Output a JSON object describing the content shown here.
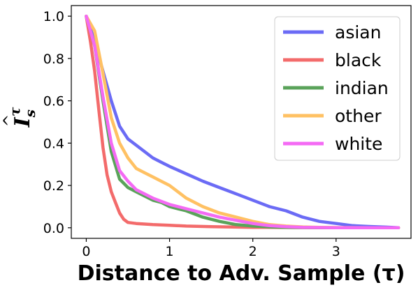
{
  "chart_data": {
    "type": "line",
    "xlabel": "Distance to Adv. Sample (τ)",
    "ylabel": "Î_s^τ",
    "ylabel_display": {
      "base": "I",
      "sub": "s",
      "sup": "τ"
    },
    "xlim": [
      -0.18,
      3.9
    ],
    "ylim": [
      -0.05,
      1.05
    ],
    "x_ticks": [
      0,
      1,
      2,
      3
    ],
    "y_ticks": [
      0.0,
      0.2,
      0.4,
      0.6,
      0.8,
      1.0
    ],
    "y_tick_labels": [
      "0.0",
      "0.2",
      "0.4",
      "0.6",
      "0.8",
      "1.0"
    ],
    "legend_position": "top-right",
    "grid": false,
    "series": [
      {
        "name": "asian",
        "color": "#6b6bf5",
        "x": [
          0,
          0.1,
          0.2,
          0.3,
          0.4,
          0.5,
          0.6,
          0.7,
          0.8,
          0.9,
          1.0,
          1.2,
          1.4,
          1.6,
          1.8,
          2.0,
          2.2,
          2.4,
          2.6,
          2.8,
          3.0,
          3.2,
          3.4,
          3.6,
          3.75
        ],
        "y": [
          1.0,
          0.88,
          0.74,
          0.6,
          0.48,
          0.42,
          0.39,
          0.36,
          0.33,
          0.31,
          0.29,
          0.255,
          0.22,
          0.19,
          0.16,
          0.13,
          0.1,
          0.08,
          0.05,
          0.03,
          0.02,
          0.01,
          0.006,
          0.003,
          0.0
        ]
      },
      {
        "name": "black",
        "color": "#f36b6b",
        "x": [
          0,
          0.05,
          0.1,
          0.15,
          0.2,
          0.25,
          0.3,
          0.35,
          0.4,
          0.45,
          0.5,
          0.6,
          0.8,
          1.0,
          1.2,
          1.5,
          2.0,
          2.5,
          3.0,
          3.75
        ],
        "y": [
          1.0,
          0.88,
          0.74,
          0.56,
          0.38,
          0.25,
          0.17,
          0.12,
          0.07,
          0.04,
          0.025,
          0.02,
          0.015,
          0.012,
          0.008,
          0.005,
          0.002,
          0.001,
          0.0,
          0.0
        ]
      },
      {
        "name": "indian",
        "color": "#5aa35a",
        "x": [
          0,
          0.1,
          0.2,
          0.3,
          0.4,
          0.5,
          0.6,
          0.7,
          0.8,
          0.9,
          1.0,
          1.2,
          1.4,
          1.6,
          1.8,
          2.0,
          2.2,
          2.4,
          2.6,
          3.0,
          3.75
        ],
        "y": [
          1.0,
          0.86,
          0.6,
          0.36,
          0.23,
          0.19,
          0.17,
          0.15,
          0.13,
          0.12,
          0.1,
          0.08,
          0.05,
          0.03,
          0.015,
          0.008,
          0.004,
          0.002,
          0.001,
          0.0,
          0.0
        ]
      },
      {
        "name": "other",
        "color": "#ffc163",
        "x": [
          0,
          0.1,
          0.2,
          0.3,
          0.4,
          0.5,
          0.6,
          0.7,
          0.8,
          0.9,
          1.0,
          1.1,
          1.2,
          1.4,
          1.6,
          1.8,
          2.0,
          2.2,
          2.4,
          2.6,
          2.8,
          3.0,
          3.4,
          3.75
        ],
        "y": [
          1.0,
          0.93,
          0.73,
          0.52,
          0.4,
          0.33,
          0.28,
          0.26,
          0.24,
          0.22,
          0.2,
          0.17,
          0.14,
          0.1,
          0.07,
          0.05,
          0.03,
          0.015,
          0.008,
          0.004,
          0.002,
          0.001,
          0.0,
          0.0
        ]
      },
      {
        "name": "white",
        "color": "#f46af4",
        "x": [
          0,
          0.1,
          0.2,
          0.3,
          0.4,
          0.5,
          0.6,
          0.7,
          0.8,
          0.9,
          1.0,
          1.2,
          1.4,
          1.6,
          1.8,
          2.0,
          2.2,
          2.4,
          2.6,
          2.8,
          3.0,
          3.75
        ],
        "y": [
          1.0,
          0.86,
          0.62,
          0.4,
          0.27,
          0.22,
          0.18,
          0.16,
          0.14,
          0.125,
          0.11,
          0.09,
          0.07,
          0.05,
          0.035,
          0.02,
          0.01,
          0.005,
          0.002,
          0.001,
          0.0,
          0.0
        ]
      }
    ]
  }
}
